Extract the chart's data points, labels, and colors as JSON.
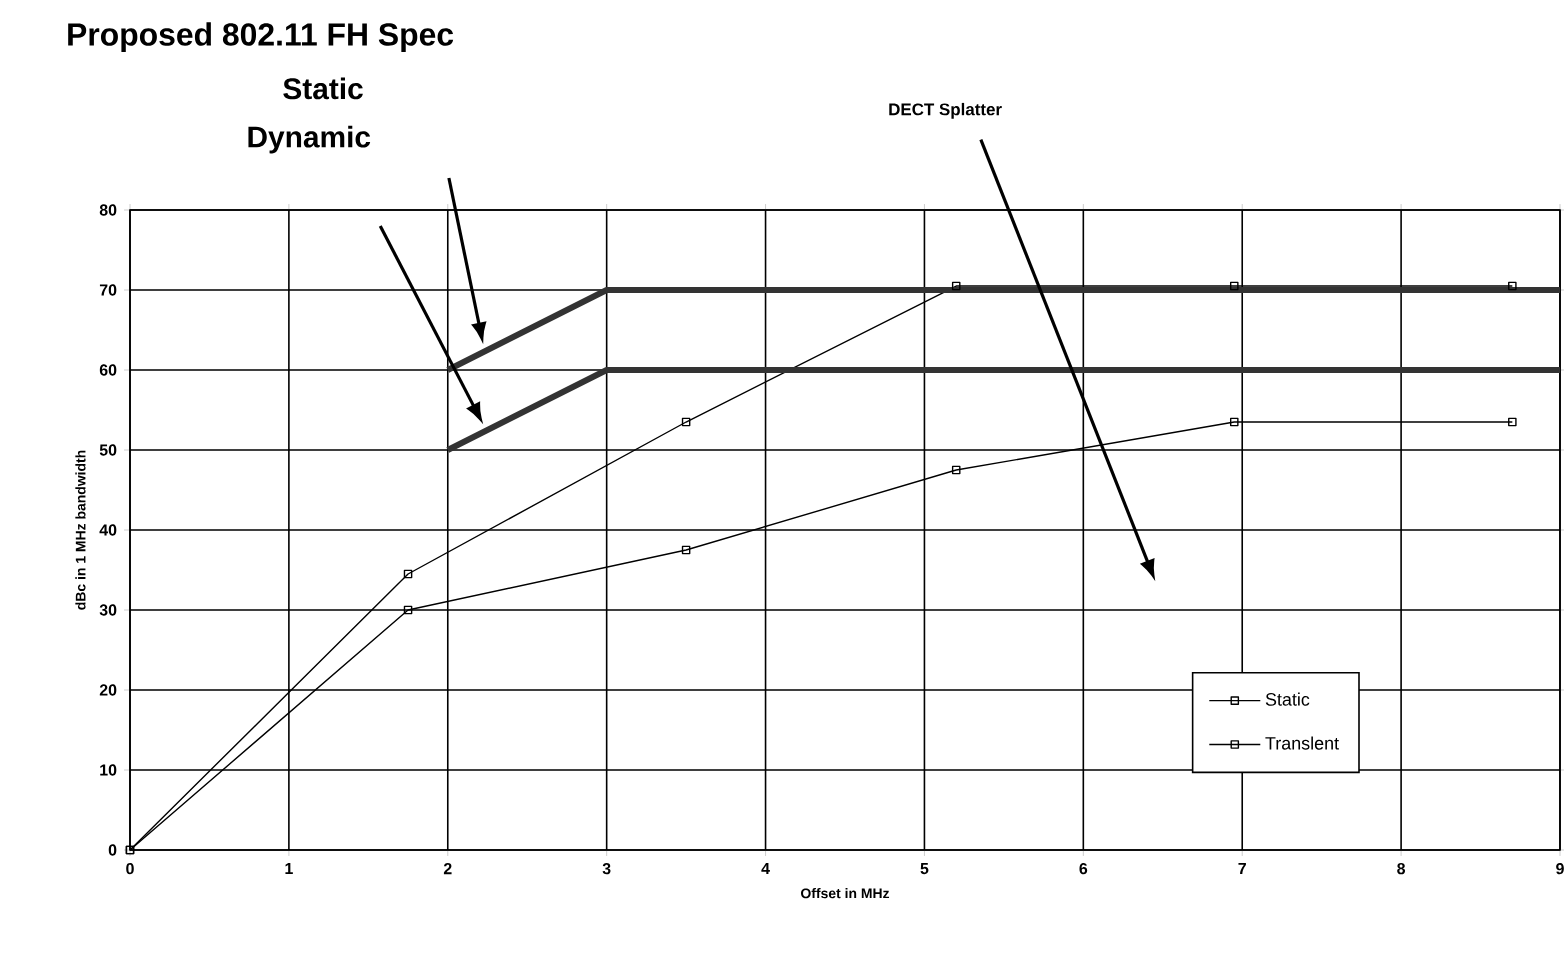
{
  "chart_data": {
    "type": "line",
    "title": "Proposed 802.11 FH Spec",
    "xlabel": "Offset in MHz",
    "ylabel": "dBc in 1 MHz bandwidth",
    "xlim": [
      0,
      9
    ],
    "ylim": [
      0,
      80
    ],
    "xticks": [
      0,
      1,
      2,
      3,
      4,
      5,
      6,
      7,
      8,
      9
    ],
    "yticks": [
      0,
      10,
      20,
      30,
      40,
      50,
      60,
      70,
      80
    ],
    "grid": true,
    "legend": "bottom right",
    "marker": "square",
    "line_style": "solid",
    "series": [
      {
        "name": "Static",
        "color": "#000000",
        "x": [
          0,
          1.75,
          3.5,
          5.2,
          6.95,
          8.7
        ],
        "values": [
          0,
          34.5,
          53.5,
          70.5,
          70.5,
          70.5
        ]
      },
      {
        "name": "Translent",
        "color": "#000000",
        "x": [
          0,
          1.75,
          3.5,
          5.2,
          6.95,
          8.7
        ],
        "values": [
          0,
          30,
          37.5,
          47.5,
          53.5,
          53.5
        ]
      },
      {
        "color": "#333333",
        "marker": "none",
        "x": [
          2,
          3,
          9
        ],
        "values": [
          60,
          70,
          70
        ]
      },
      {
        "color": "#333333",
        "marker": "none",
        "x": [
          2,
          3,
          9
        ],
        "values": [
          50,
          60,
          60
        ]
      }
    ],
    "annotations": [
      "Static",
      "Dynamic",
      "DECT Splatter"
    ]
  }
}
